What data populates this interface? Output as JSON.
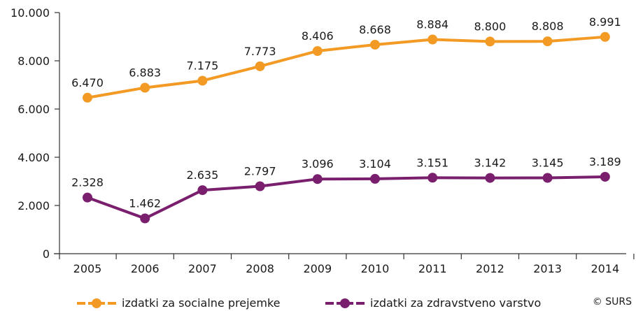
{
  "chart_data": {
    "type": "line",
    "categories": [
      "2005",
      "2006",
      "2007",
      "2008",
      "2009",
      "2010",
      "2011",
      "2012",
      "2013",
      "2014"
    ],
    "series": [
      {
        "name": "izdatki za socialne prejemke",
        "color": "#f39a25",
        "values": [
          6470,
          6883,
          7175,
          7773,
          8406,
          8668,
          8884,
          8800,
          8808,
          8991
        ],
        "labels": [
          "6.470",
          "6.883",
          "7.175",
          "7.773",
          "8.406",
          "8.668",
          "8.884",
          "8.800",
          "8.808",
          "8.991"
        ]
      },
      {
        "name": "izdatki za zdravstveno varstvo",
        "color": "#7a1f6e",
        "values": [
          2328,
          1462,
          2635,
          2797,
          3096,
          3104,
          3151,
          3142,
          3145,
          3189
        ],
        "labels": [
          "2.328",
          "1.462",
          "2.635",
          "2.797",
          "3.096",
          "3.104",
          "3.151",
          "3.142",
          "3.145",
          "3.189"
        ]
      }
    ],
    "y_ticks": [
      0,
      2000,
      4000,
      6000,
      8000,
      10000
    ],
    "y_tick_labels": [
      "0",
      "2.000",
      "4.000",
      "6.000",
      "8.000",
      "10.000"
    ],
    "ylim": [
      0,
      10000
    ],
    "grid": false,
    "legend_position": "bottom"
  },
  "credit": "© SURS"
}
